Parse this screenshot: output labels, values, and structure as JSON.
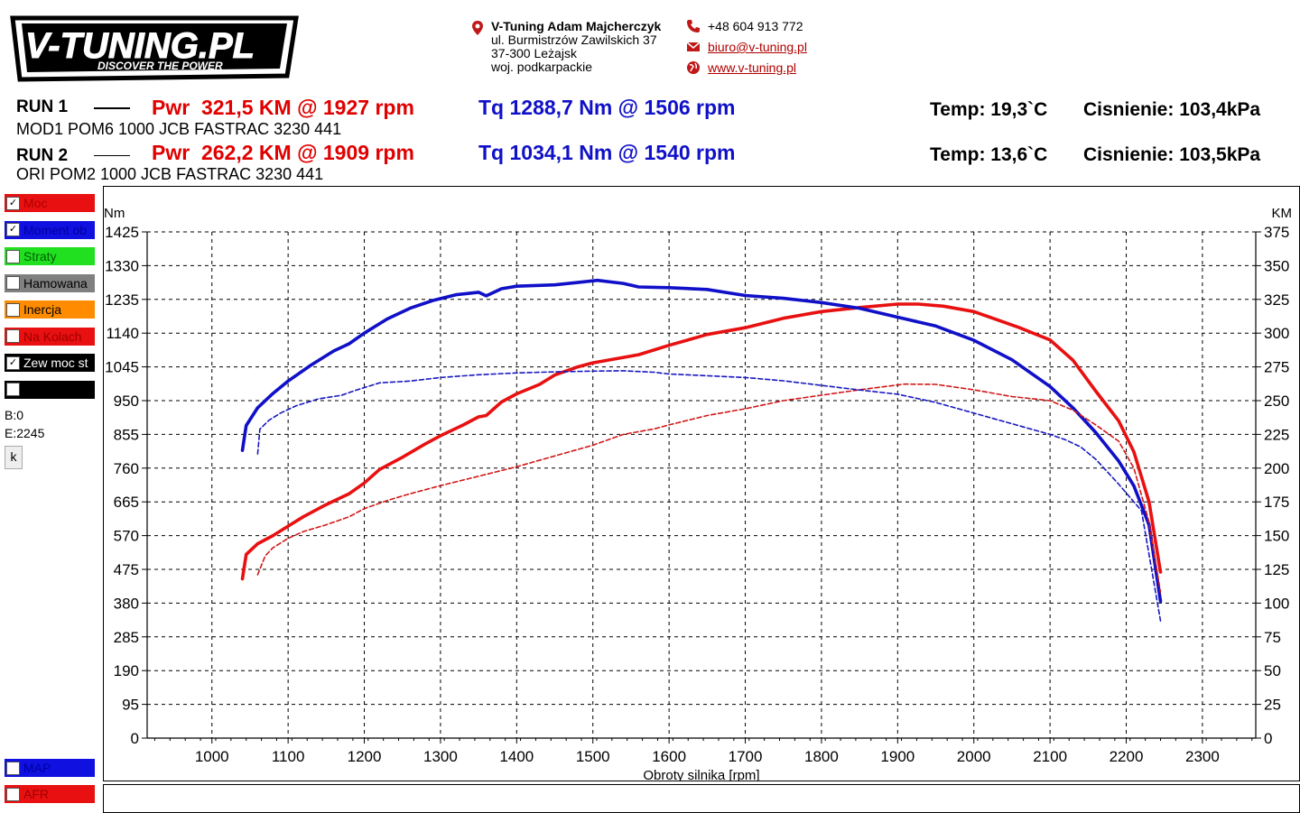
{
  "logo": {
    "text": "V-TUNING.PL",
    "tagline": "DISCOVER THE POWER"
  },
  "contact": {
    "company": "V-Tuning Adam Majcherczyk",
    "street": "ul. Burmistrzów Zawilskich 37",
    "city": "37-300 Leżajsk",
    "region": "woj. podkarpackie",
    "phone": "+48 604 913 772",
    "email": "biuro@v-tuning.pl",
    "website": "www.v-tuning.pl"
  },
  "runs": [
    {
      "label": "RUN 1",
      "desc": "MOD1 POM6 1000 JCB FASTRAC 3230 441",
      "pwr": "Pwr  321,5 KM @ 1927 rpm",
      "tq": "Tq 1288,7 Nm @ 1506 rpm",
      "temp": "Temp: 19,3`C",
      "pressure": "Cisnienie: 103,4kPa"
    },
    {
      "label": "RUN 2",
      "desc": "ORI POM2 1000 JCB FASTRAC 3230 441",
      "pwr": "Pwr  262,2 KM @ 1909 rpm",
      "tq": "Tq 1034,1 Nm @ 1540 rpm",
      "temp": "Temp: 13,6`C",
      "pressure": "Cisnienie: 103,5kPa"
    }
  ],
  "legend": [
    {
      "label": "Moc",
      "color": "#e81010",
      "checked": true,
      "text_color": "#b00000"
    },
    {
      "label": "Moment ob",
      "color": "#1010e0",
      "checked": true,
      "text_color": "#0000a0"
    },
    {
      "label": "Straty",
      "color": "#20e020",
      "checked": false,
      "text_color": "#006000"
    },
    {
      "label": "Hamowana",
      "color": "#808080",
      "checked": false,
      "text_color": "#000000"
    },
    {
      "label": "Inercja",
      "color": "#ff8c00",
      "checked": false,
      "text_color": "#000000"
    },
    {
      "label": "Na Kolach",
      "color": "#e81010",
      "checked": false,
      "text_color": "#a00000"
    },
    {
      "label": "Zew moc st",
      "color": "#000000",
      "checked": true,
      "text_color": "#ffffff"
    },
    {
      "label": "",
      "color": "#000000",
      "checked": false,
      "text_color": "#ffffff"
    }
  ],
  "legend_bottom": [
    {
      "label": "MAP",
      "color": "#1010e0",
      "checked": false,
      "text_color": "#0000a0"
    },
    {
      "label": "AFR",
      "color": "#e81010",
      "checked": false,
      "text_color": "#a00000"
    }
  ],
  "status": {
    "b": "B:0",
    "e": "E:2245",
    "button": "k"
  },
  "chart_data": {
    "type": "line",
    "xlabel": "Obroty silnika [rpm]",
    "ylabel_left": "Nm",
    "ylabel_right": "KM",
    "xlim": [
      915,
      2370
    ],
    "xticks": [
      1000,
      1100,
      1200,
      1300,
      1400,
      1500,
      1600,
      1700,
      1800,
      1900,
      2000,
      2100,
      2200,
      2300
    ],
    "ylim_left": [
      0,
      1425
    ],
    "yticks_left": [
      0,
      95,
      190,
      285,
      380,
      475,
      570,
      665,
      760,
      855,
      950,
      1045,
      1140,
      1235,
      1330,
      1425
    ],
    "ylim_right": [
      0,
      375
    ],
    "yticks_right": [
      0,
      25,
      50,
      75,
      100,
      125,
      150,
      175,
      200,
      225,
      250,
      275,
      300,
      325,
      350,
      375
    ],
    "grid": true,
    "series": [
      {
        "run": "RUN 1",
        "quantity": "power",
        "axis": "right",
        "color": "#e81010",
        "style": "solid",
        "x": [
          1040,
          1045,
          1060,
          1080,
          1100,
          1120,
          1150,
          1180,
          1200,
          1220,
          1250,
          1280,
          1300,
          1330,
          1350,
          1360,
          1380,
          1400,
          1430,
          1450,
          1480,
          1500,
          1530,
          1560,
          1600,
          1650,
          1700,
          1750,
          1800,
          1850,
          1900,
          1927,
          1960,
          2000,
          2030,
          2060,
          2100,
          2130,
          2160,
          2190,
          2210,
          2230,
          2245
        ],
        "values": [
          118,
          136,
          144,
          150,
          157,
          164,
          173,
          181,
          189,
          199,
          208,
          218,
          224,
          232,
          238,
          239,
          249,
          255,
          262,
          269,
          275,
          278,
          281,
          284,
          291,
          299,
          304,
          311,
          316,
          319,
          321.5,
          321.5,
          320,
          316,
          310,
          304,
          295,
          280,
          257,
          235,
          212,
          175,
          123
        ]
      },
      {
        "run": "RUN 1",
        "quantity": "torque",
        "axis": "left",
        "color": "#1010c8",
        "style": "solid",
        "x": [
          1040,
          1045,
          1060,
          1080,
          1100,
          1130,
          1160,
          1180,
          1200,
          1230,
          1260,
          1290,
          1320,
          1350,
          1360,
          1380,
          1400,
          1450,
          1506,
          1540,
          1560,
          1600,
          1650,
          1700,
          1750,
          1800,
          1850,
          1900,
          1950,
          2000,
          2050,
          2100,
          2130,
          2160,
          2190,
          2210,
          2230,
          2245
        ],
        "values": [
          810,
          880,
          930,
          970,
          1005,
          1050,
          1090,
          1110,
          1140,
          1180,
          1210,
          1232,
          1248,
          1255,
          1245,
          1265,
          1272,
          1276,
          1288.7,
          1280,
          1270,
          1268,
          1263,
          1246,
          1238,
          1226,
          1210,
          1185,
          1160,
          1120,
          1065,
          990,
          930,
          860,
          780,
          710,
          600,
          385
        ]
      },
      {
        "run": "RUN 2",
        "quantity": "power",
        "axis": "right",
        "color": "#d01818",
        "style": "dashed",
        "x": [
          1060,
          1070,
          1080,
          1100,
          1120,
          1150,
          1180,
          1200,
          1230,
          1260,
          1300,
          1350,
          1400,
          1450,
          1500,
          1540,
          1580,
          1600,
          1650,
          1700,
          1750,
          1800,
          1850,
          1909,
          1950,
          2000,
          2050,
          2100,
          2130,
          2160,
          2190,
          2210,
          2230,
          2245
        ],
        "values": [
          121,
          135,
          141,
          148,
          153,
          158,
          164,
          170,
          176,
          181,
          187,
          194,
          201,
          209,
          217,
          225,
          229,
          232,
          239,
          244,
          250,
          254,
          258,
          262.2,
          262,
          258,
          253,
          250,
          243,
          232,
          220,
          200,
          160,
          108
        ]
      },
      {
        "run": "RUN 2",
        "quantity": "torque",
        "axis": "left",
        "color": "#1818c0",
        "style": "dashed",
        "x": [
          1060,
          1063,
          1075,
          1090,
          1110,
          1140,
          1170,
          1190,
          1220,
          1260,
          1300,
          1350,
          1400,
          1450,
          1500,
          1540,
          1580,
          1600,
          1650,
          1700,
          1750,
          1800,
          1850,
          1900,
          1950,
          2000,
          2050,
          2100,
          2120,
          2140,
          2160,
          2190,
          2220,
          2245
        ],
        "values": [
          800,
          870,
          895,
          915,
          935,
          955,
          965,
          980,
          1000,
          1005,
          1015,
          1023,
          1028,
          1031,
          1033,
          1034.1,
          1030,
          1025,
          1020,
          1015,
          1006,
          993,
          980,
          968,
          945,
          915,
          885,
          855,
          840,
          820,
          785,
          715,
          640,
          330
        ]
      }
    ]
  }
}
